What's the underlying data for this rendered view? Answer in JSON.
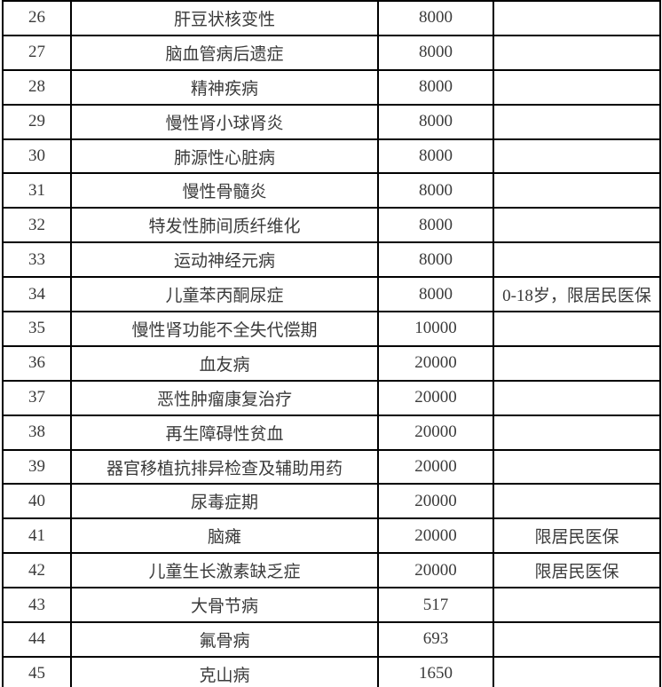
{
  "colors": {
    "text": "#3a3a3a",
    "border": "#000000",
    "background": "#ffffff"
  },
  "table": {
    "rows": [
      {
        "no": "26",
        "name": "肝豆状核变性",
        "amount": "8000",
        "note": ""
      },
      {
        "no": "27",
        "name": "脑血管病后遗症",
        "amount": "8000",
        "note": ""
      },
      {
        "no": "28",
        "name": "精神疾病",
        "amount": "8000",
        "note": ""
      },
      {
        "no": "29",
        "name": "慢性肾小球肾炎",
        "amount": "8000",
        "note": ""
      },
      {
        "no": "30",
        "name": "肺源性心脏病",
        "amount": "8000",
        "note": ""
      },
      {
        "no": "31",
        "name": "慢性骨髓炎",
        "amount": "8000",
        "note": ""
      },
      {
        "no": "32",
        "name": "特发性肺间质纤维化",
        "amount": "8000",
        "note": ""
      },
      {
        "no": "33",
        "name": "运动神经元病",
        "amount": "8000",
        "note": ""
      },
      {
        "no": "34",
        "name": "儿童苯丙酮尿症",
        "amount": "8000",
        "note": "0-18岁，限居民医保"
      },
      {
        "no": "35",
        "name": "慢性肾功能不全失代偿期",
        "amount": "10000",
        "note": ""
      },
      {
        "no": "36",
        "name": "血友病",
        "amount": "20000",
        "note": ""
      },
      {
        "no": "37",
        "name": "恶性肿瘤康复治疗",
        "amount": "20000",
        "note": ""
      },
      {
        "no": "38",
        "name": "再生障碍性贫血",
        "amount": "20000",
        "note": ""
      },
      {
        "no": "39",
        "name": "器官移植抗排异检查及辅助用药",
        "amount": "20000",
        "note": ""
      },
      {
        "no": "40",
        "name": "尿毒症期",
        "amount": "20000",
        "note": ""
      },
      {
        "no": "41",
        "name": "脑瘫",
        "amount": "20000",
        "note": "限居民医保"
      },
      {
        "no": "42",
        "name": "儿童生长激素缺乏症",
        "amount": "20000",
        "note": "限居民医保"
      },
      {
        "no": "43",
        "name": "大骨节病",
        "amount": "517",
        "note": ""
      },
      {
        "no": "44",
        "name": "氟骨病",
        "amount": "693",
        "note": ""
      },
      {
        "no": "45",
        "name": "克山病",
        "amount": "1650",
        "note": ""
      }
    ]
  }
}
